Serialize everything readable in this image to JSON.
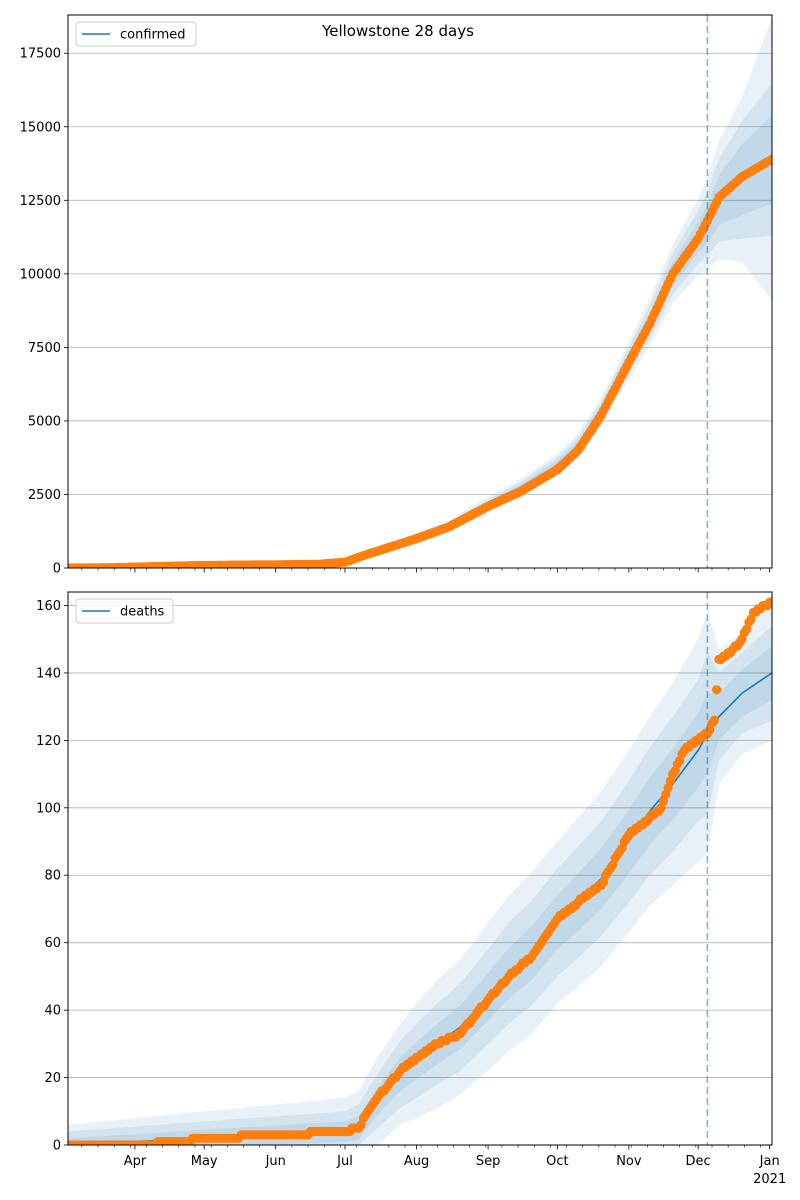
{
  "figure": {
    "title": "Yellowstone 28 days"
  },
  "colors": {
    "model": "#1f77b4",
    "observed": "#ff7f0e",
    "band": "#1f77b4",
    "grid": "#b0b0b0",
    "forecast_line": "#1f77b4"
  },
  "x_axis": {
    "ticks": [
      {
        "date": "2020-04-01",
        "label": "Apr"
      },
      {
        "date": "2020-05-01",
        "label": "May"
      },
      {
        "date": "2020-06-01",
        "label": "Jun"
      },
      {
        "date": "2020-07-01",
        "label": "Jul"
      },
      {
        "date": "2020-08-01",
        "label": "Aug"
      },
      {
        "date": "2020-09-01",
        "label": "Sep"
      },
      {
        "date": "2020-10-01",
        "label": "Oct"
      },
      {
        "date": "2020-11-01",
        "label": "Nov"
      },
      {
        "date": "2020-12-01",
        "label": "Dec"
      },
      {
        "date": "2021-01-01",
        "label": "Jan",
        "sublabel": "2021"
      }
    ]
  },
  "chart_data": [
    {
      "type": "line",
      "legend": "confirmed",
      "legend_position": "top-left",
      "grid": "y",
      "xlim": [
        "2020-03-03",
        "2021-01-02"
      ],
      "ylim": [
        0,
        18800
      ],
      "yticks": [
        0,
        2500,
        5000,
        7500,
        10000,
        12500,
        15000,
        17500
      ],
      "forecast_start": "2020-12-05",
      "observed": {
        "x": [
          "2020-03-03",
          "2020-03-20",
          "2020-04-10",
          "2020-05-01",
          "2020-06-01",
          "2020-06-20",
          "2020-07-01",
          "2020-07-10",
          "2020-07-20",
          "2020-08-01",
          "2020-08-15",
          "2020-09-01",
          "2020-09-15",
          "2020-10-01",
          "2020-10-10",
          "2020-10-20",
          "2020-11-01",
          "2020-11-10",
          "2020-11-20",
          "2020-12-01",
          "2020-12-05",
          "2020-12-10",
          "2020-12-20",
          "2021-01-02"
        ],
        "y": [
          0,
          10,
          50,
          90,
          110,
          130,
          200,
          450,
          700,
          1000,
          1400,
          2100,
          2600,
          3350,
          4000,
          5200,
          7000,
          8300,
          10000,
          11200,
          11800,
          12600,
          13300,
          13900
        ]
      },
      "model": {
        "x": [
          "2020-03-03",
          "2020-04-10",
          "2020-05-01",
          "2020-06-01",
          "2020-06-20",
          "2020-07-01",
          "2020-07-10",
          "2020-07-20",
          "2020-08-01",
          "2020-08-15",
          "2020-09-01",
          "2020-09-15",
          "2020-10-01",
          "2020-10-10",
          "2020-10-20",
          "2020-11-01",
          "2020-11-10",
          "2020-11-20",
          "2020-12-01",
          "2020-12-05",
          "2020-12-10",
          "2020-12-20",
          "2021-01-02"
        ],
        "y": [
          0,
          50,
          90,
          110,
          130,
          200,
          450,
          700,
          1000,
          1400,
          2150,
          2700,
          3500,
          4150,
          5300,
          7050,
          8350,
          10000,
          11250,
          11700,
          12500,
          13200,
          13900
        ]
      },
      "bands": [
        {
          "spread": [
            0,
            20,
            30,
            40,
            60,
            80,
            120,
            150,
            180,
            220,
            280,
            320,
            380,
            420,
            500,
            650,
            800,
            1000,
            1300,
            1600,
            2000,
            2800,
            4800
          ]
        },
        {
          "spread": [
            0,
            12,
            18,
            25,
            40,
            55,
            80,
            100,
            120,
            150,
            190,
            220,
            260,
            290,
            350,
            450,
            560,
            700,
            900,
            1100,
            1400,
            2000,
            2600
          ]
        },
        {
          "spread": [
            0,
            6,
            10,
            14,
            22,
            30,
            45,
            60,
            70,
            90,
            110,
            130,
            150,
            170,
            200,
            260,
            320,
            400,
            520,
            650,
            850,
            1200,
            1500
          ]
        }
      ]
    },
    {
      "type": "line",
      "legend": "deaths",
      "legend_position": "top-left",
      "grid": "y",
      "xlim": [
        "2020-03-03",
        "2021-01-02"
      ],
      "ylim": [
        0,
        164
      ],
      "yticks": [
        0,
        20,
        40,
        60,
        80,
        100,
        120,
        140,
        160
      ],
      "forecast_start": "2020-12-05",
      "observed": {
        "x": [
          "2020-03-03",
          "2020-04-01",
          "2020-04-20",
          "2020-05-01",
          "2020-06-01",
          "2020-07-01",
          "2020-07-07",
          "2020-07-10",
          "2020-07-15",
          "2020-07-20",
          "2020-07-25",
          "2020-08-01",
          "2020-08-10",
          "2020-08-20",
          "2020-09-01",
          "2020-09-10",
          "2020-09-20",
          "2020-10-01",
          "2020-10-10",
          "2020-10-20",
          "2020-11-01",
          "2020-11-10",
          "2020-11-15",
          "2020-11-20",
          "2020-11-25",
          "2020-12-01",
          "2020-12-05",
          "2020-12-08",
          "2020-12-10",
          "2020-12-15",
          "2020-12-20",
          "2020-12-25",
          "2021-01-02"
        ],
        "y": [
          0,
          0,
          1,
          2,
          3,
          4,
          5,
          9,
          14,
          18,
          22,
          26,
          30,
          33,
          43,
          50,
          56,
          67,
          72,
          77,
          92,
          97,
          100,
          110,
          117,
          120,
          122,
          126,
          144,
          146,
          150,
          158,
          161
        ]
      },
      "model": {
        "x": [
          "2020-03-03",
          "2020-04-01",
          "2020-05-01",
          "2020-06-01",
          "2020-07-01",
          "2020-07-07",
          "2020-07-15",
          "2020-07-25",
          "2020-08-01",
          "2020-08-10",
          "2020-08-20",
          "2020-09-01",
          "2020-09-10",
          "2020-09-20",
          "2020-10-01",
          "2020-10-10",
          "2020-10-20",
          "2020-11-01",
          "2020-11-10",
          "2020-11-20",
          "2020-12-01",
          "2020-12-05",
          "2020-12-10",
          "2020-12-20",
          "2021-01-02"
        ],
        "y": [
          0,
          1,
          2,
          3,
          4,
          5,
          13,
          21,
          25,
          30,
          35,
          44,
          51,
          57,
          66,
          72,
          79,
          90,
          99,
          107,
          117,
          122,
          127,
          134,
          140
        ]
      },
      "bands": [
        {
          "spread": [
            6,
            7,
            8,
            9,
            10,
            11,
            13,
            15,
            17,
            19,
            20,
            22,
            23,
            24,
            24,
            25,
            26,
            27,
            28,
            30,
            33,
            36,
            20,
            18,
            20
          ]
        },
        {
          "spread": [
            4,
            4.5,
            5,
            5.5,
            6,
            7,
            8,
            10,
            11,
            12,
            13,
            14,
            15,
            15.5,
            16,
            16.5,
            17,
            18,
            19,
            20,
            21,
            24,
            13,
            12,
            14
          ]
        },
        {
          "spread": [
            2,
            2.2,
            2.5,
            2.8,
            3,
            3.5,
            4,
            5,
            5.5,
            6,
            6.5,
            7,
            7.5,
            8,
            8,
            8.5,
            9,
            9.5,
            10,
            10.5,
            11,
            12,
            7,
            7,
            8
          ]
        }
      ]
    }
  ]
}
